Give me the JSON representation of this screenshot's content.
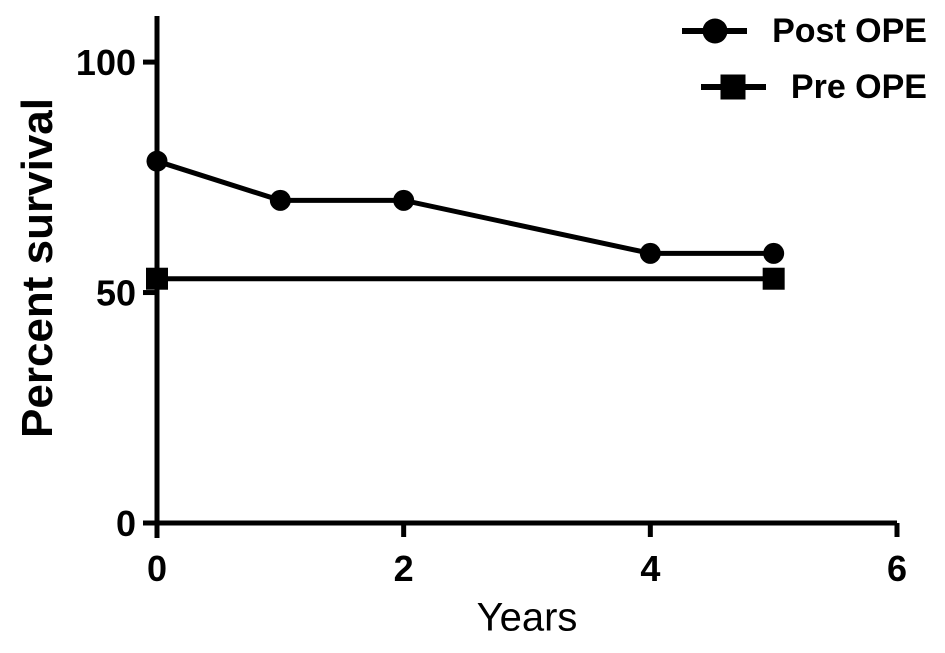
{
  "chart_data": {
    "type": "line",
    "title": "",
    "xlabel": "Years",
    "ylabel": "Percent survival",
    "xlim": [
      0,
      6
    ],
    "ylim": [
      0,
      110
    ],
    "x_ticks": [
      0,
      2,
      4,
      6
    ],
    "y_ticks": [
      0,
      50,
      100
    ],
    "grid": false,
    "legend_position": "top-right",
    "color": "#000000",
    "background": "#ffffff",
    "series": [
      {
        "name": "Post OPE",
        "marker": "circle",
        "x": [
          0,
          1,
          2,
          4,
          5
        ],
        "y": [
          78.5,
          70,
          70,
          58.5,
          58.5
        ]
      },
      {
        "name": "Pre OPE",
        "marker": "square",
        "x": [
          0,
          5
        ],
        "y": [
          53,
          53
        ]
      }
    ]
  }
}
